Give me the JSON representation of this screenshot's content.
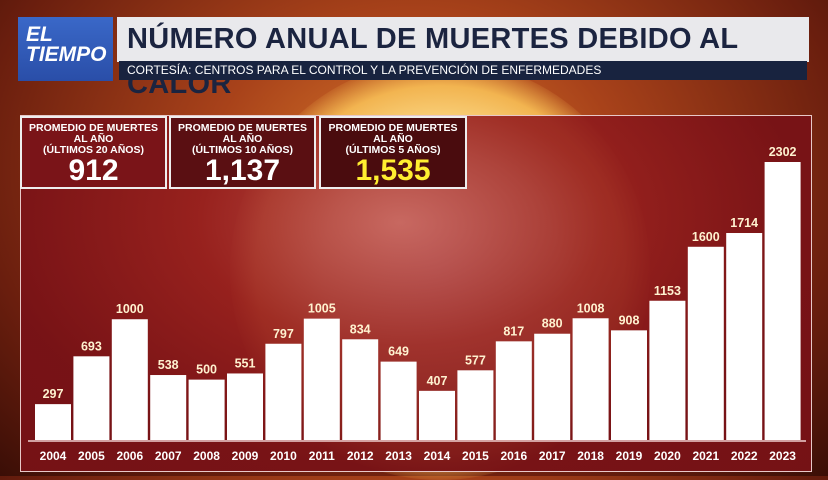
{
  "header": {
    "logo_line1": "EL",
    "logo_line2": "TIEMPO",
    "title": "NÚMERO ANUAL DE MUERTES DEBIDO AL CALOR",
    "subtitle": "CORTESÍA: CENTROS PARA EL CONTROL Y LA PREVENCIÓN DE ENFERMEDADES"
  },
  "stats": [
    {
      "label1": "PROMEDIO DE MUERTES",
      "label2": "AL AÑO",
      "label3": "(ÚLTIMOS 20 AÑOS)",
      "value": "912"
    },
    {
      "label1": "PROMEDIO DE MUERTES",
      "label2": "AL AÑO",
      "label3": "(ÚLTIMOS 10 AÑOS)",
      "value": "1,137"
    },
    {
      "label1": "PROMEDIO DE MUERTES",
      "label2": "AL AÑO",
      "label3": "(ÚLTIMOS 5 AÑOS)",
      "value": "1,535"
    }
  ],
  "colors": {
    "bar": "#ffffff",
    "panel": "#7a1418",
    "highlight": "#ffee30",
    "title_bg": "#e9e9ec",
    "subtitle_bg": "#18233f"
  },
  "chart_data": {
    "type": "bar",
    "categories": [
      "2004",
      "2005",
      "2006",
      "2007",
      "2008",
      "2009",
      "2010",
      "2011",
      "2012",
      "2013",
      "2014",
      "2015",
      "2016",
      "2017",
      "2018",
      "2019",
      "2020",
      "2021",
      "2022",
      "2023"
    ],
    "values": [
      297,
      693,
      1000,
      538,
      500,
      551,
      797,
      1005,
      834,
      649,
      407,
      577,
      817,
      880,
      1008,
      908,
      1153,
      1600,
      1714,
      2302
    ],
    "title": "NÚMERO ANUAL DE MUERTES DEBIDO AL CALOR",
    "xlabel": "",
    "ylabel": "",
    "ylim": [
      0,
      2302
    ],
    "grid": false,
    "data_labels": true
  }
}
